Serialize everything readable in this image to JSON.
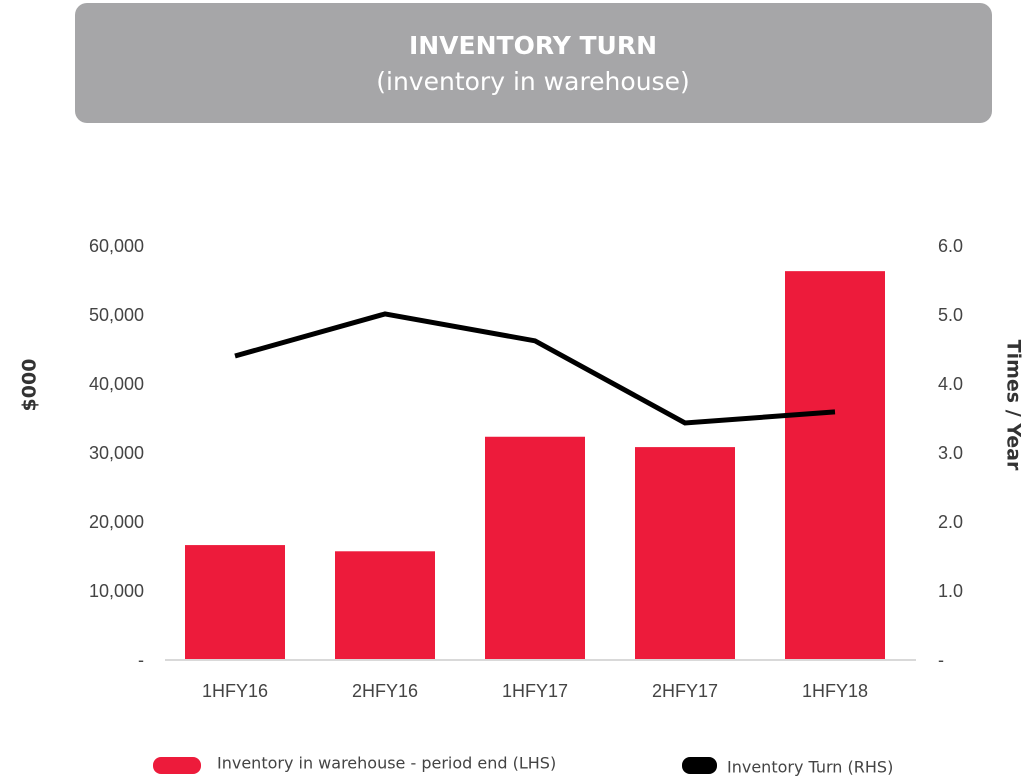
{
  "chart_data": {
    "type": "bar_line",
    "title": "INVENTORY TURN",
    "subtitle": "(inventory in warehouse)",
    "y_label": "$000",
    "y2_label": "Times / Year",
    "categories": [
      "1HFY16",
      "2HFY16",
      "1HFY17",
      "2HFY17",
      "1HFY18"
    ],
    "series": [
      {
        "name": "Inventory in warehouse - period end (LHS)",
        "color": "#ed1b3b",
        "type": "bar",
        "values": [
          16800,
          15900,
          32500,
          31000,
          56500
        ]
      },
      {
        "name": "Inventory Turn (RHS)",
        "color": "#000000",
        "type": "line",
        "axis": "y2",
        "values": [
          4.42,
          5.03,
          4.64,
          3.45,
          3.61
        ]
      }
    ],
    "ylim": [
      0,
      60000
    ],
    "yticks": [
      {
        "value": 0,
        "label": "-"
      },
      {
        "value": 10000,
        "label": "10,000"
      },
      {
        "value": 20000,
        "label": "20,000"
      },
      {
        "value": 30000,
        "label": "30,000"
      },
      {
        "value": 40000,
        "label": "40,000"
      },
      {
        "value": 50000,
        "label": "50,000"
      },
      {
        "value": 60000,
        "label": "60,000"
      }
    ],
    "y2lim": [
      0,
      6
    ],
    "y2ticks": [
      {
        "value": 0,
        "label": "-"
      },
      {
        "value": 1,
        "label": "1.0"
      },
      {
        "value": 2,
        "label": "2.0"
      },
      {
        "value": 3,
        "label": "3.0"
      },
      {
        "value": 4,
        "label": "4.0"
      },
      {
        "value": 5,
        "label": "5.0"
      },
      {
        "value": 6,
        "label": "6.0"
      }
    ],
    "grid": false
  }
}
